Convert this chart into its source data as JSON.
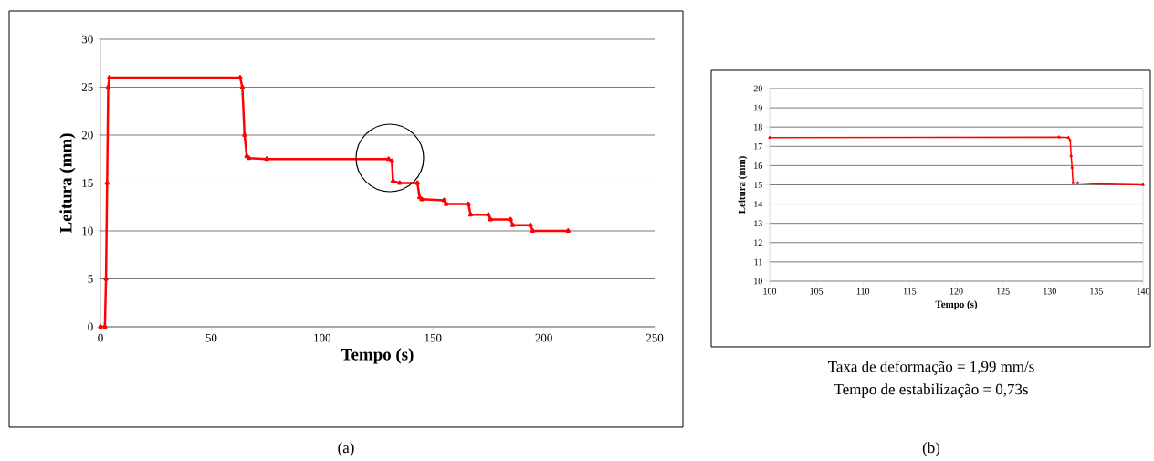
{
  "chart_data": [
    {
      "type": "line",
      "xlabel": "Tempo (s)",
      "ylabel": "Leitura (mm)",
      "xlim": [
        0,
        250
      ],
      "ylim": [
        0,
        30
      ],
      "xticks": [
        0,
        50,
        100,
        150,
        200,
        250
      ],
      "yticks": [
        0,
        5,
        10,
        15,
        20,
        25,
        30
      ],
      "grid": "y",
      "marker": "triangle",
      "line_style": "solid",
      "annotations": [
        "(a)"
      ],
      "series": [
        {
          "color": "#ff0000",
          "x": [
            0,
            2,
            2.5,
            3,
            3.5,
            4,
            63,
            64,
            65,
            66,
            67,
            75,
            130,
            131.5,
            132,
            135,
            143,
            144,
            145,
            155,
            156,
            166,
            167,
            175,
            176,
            185,
            186,
            194,
            195,
            211
          ],
          "values": [
            0,
            0,
            5,
            15,
            25,
            26,
            26,
            25,
            20,
            17.8,
            17.6,
            17.5,
            17.5,
            17.3,
            15.2,
            15,
            15,
            13.5,
            13.3,
            13.2,
            12.8,
            12.8,
            11.7,
            11.7,
            11.2,
            11.2,
            10.6,
            10.6,
            10,
            10
          ]
        }
      ]
    },
    {
      "type": "line",
      "xlabel": "Tempo (s)",
      "ylabel": "Leitura (mm)",
      "xlim": [
        100,
        140
      ],
      "ylim": [
        10,
        20
      ],
      "xticks": [
        100,
        105,
        110,
        115,
        120,
        125,
        130,
        135,
        140
      ],
      "yticks": [
        10,
        11,
        12,
        13,
        14,
        15,
        16,
        17,
        18,
        19,
        20
      ],
      "grid": "y",
      "marker": "triangle",
      "line_style": "solid",
      "annotations": [
        "Taxa de deformação = 1,99 mm/s",
        "Tempo de estabilização = 0,73s",
        "(b)"
      ],
      "series": [
        {
          "color": "#ff0000",
          "x": [
            100,
            131,
            132,
            132.2,
            132.3,
            132.4,
            132.5,
            133,
            135,
            140
          ],
          "values": [
            17.45,
            17.48,
            17.45,
            17.3,
            16.5,
            15.9,
            15.1,
            15.1,
            15.05,
            15.0
          ]
        }
      ]
    }
  ]
}
